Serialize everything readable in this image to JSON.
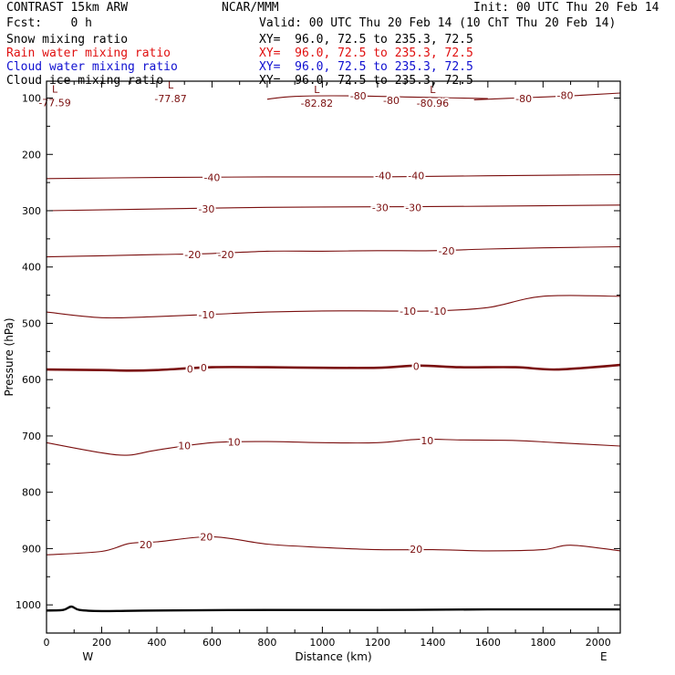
{
  "header": {
    "title": "CONTRAST 15km ARW",
    "center": "NCAR/MMM",
    "init": "Init: 00 UTC Thu 20 Feb 14",
    "fcst": "Fcst:    0 h",
    "valid": "Valid: 00 UTC Thu 20 Feb 14 (10 ChT Thu 20 Feb 14)"
  },
  "legend": [
    {
      "label": "Snow mixing ratio",
      "xy": "XY=  96.0, 72.5 to 235.3, 72.5",
      "color": "#000000"
    },
    {
      "label": "Rain water mixing ratio",
      "xy": "XY=  96.0, 72.5 to 235.3, 72.5",
      "color": "#e01010"
    },
    {
      "label": "Cloud water mixing ratio",
      "xy": "XY=  96.0, 72.5 to 235.3, 72.5",
      "color": "#1010d0"
    },
    {
      "label": "Cloud ice mixing ratio",
      "xy": "XY=  96.0, 72.5 to 235.3, 72.5",
      "color": "#000000"
    }
  ],
  "chart_data": {
    "type": "contour",
    "xlabel": "Distance (km)",
    "ylabel": "Pressure (hPa)",
    "xlim": [
      0,
      2080
    ],
    "ylim": [
      1050,
      70
    ],
    "x_ticks": [
      0,
      200,
      400,
      600,
      800,
      1000,
      1200,
      1400,
      1600,
      1800,
      2000
    ],
    "y_ticks": [
      100,
      200,
      300,
      400,
      500,
      600,
      700,
      800,
      900,
      1000
    ],
    "x_end_labels": {
      "left": "W",
      "right": "E"
    },
    "contour_color": "#7a0e0e",
    "zero_line_color": "#7a0e0e",
    "contours": [
      {
        "level": 20,
        "points": [
          [
            0,
            911
          ],
          [
            200,
            905
          ],
          [
            300,
            891
          ],
          [
            400,
            888
          ],
          [
            600,
            879
          ],
          [
            800,
            892
          ],
          [
            1000,
            898
          ],
          [
            1200,
            902
          ],
          [
            1400,
            902
          ],
          [
            1600,
            904
          ],
          [
            1800,
            902
          ],
          [
            1900,
            894
          ],
          [
            2080,
            904
          ]
        ]
      },
      {
        "level": 10,
        "points": [
          [
            0,
            712
          ],
          [
            200,
            730
          ],
          [
            300,
            734
          ],
          [
            400,
            725
          ],
          [
            600,
            712
          ],
          [
            800,
            710
          ],
          [
            1000,
            712
          ],
          [
            1200,
            712
          ],
          [
            1350,
            706
          ],
          [
            1500,
            707
          ],
          [
            1700,
            708
          ],
          [
            1850,
            712
          ],
          [
            2080,
            718
          ]
        ]
      },
      {
        "level": 0,
        "points": [
          [
            0,
            582
          ],
          [
            200,
            583
          ],
          [
            300,
            584
          ],
          [
            400,
            583
          ],
          [
            600,
            578
          ],
          [
            800,
            578
          ],
          [
            1000,
            579
          ],
          [
            1200,
            579
          ],
          [
            1350,
            575
          ],
          [
            1500,
            578
          ],
          [
            1700,
            578
          ],
          [
            1850,
            582
          ],
          [
            2080,
            574
          ]
        ]
      },
      {
        "level": -10,
        "points": [
          [
            0,
            480
          ],
          [
            200,
            490
          ],
          [
            400,
            488
          ],
          [
            600,
            484
          ],
          [
            800,
            480
          ],
          [
            1000,
            478
          ],
          [
            1200,
            478
          ],
          [
            1400,
            478
          ],
          [
            1600,
            472
          ],
          [
            1800,
            452
          ],
          [
            2080,
            452
          ]
        ]
      },
      {
        "level": -20,
        "points": [
          [
            0,
            382
          ],
          [
            200,
            380
          ],
          [
            400,
            378
          ],
          [
            600,
            376
          ],
          [
            800,
            372
          ],
          [
            1000,
            372
          ],
          [
            1200,
            371
          ],
          [
            1400,
            371
          ],
          [
            1600,
            368
          ],
          [
            1800,
            366
          ],
          [
            2080,
            364
          ]
        ]
      },
      {
        "level": -30,
        "points": [
          [
            0,
            300
          ],
          [
            400,
            297
          ],
          [
            800,
            294
          ],
          [
            1200,
            293
          ],
          [
            1600,
            292
          ],
          [
            2080,
            290
          ]
        ]
      },
      {
        "level": -40,
        "points": [
          [
            0,
            243
          ],
          [
            400,
            241
          ],
          [
            800,
            240
          ],
          [
            1200,
            240
          ],
          [
            1600,
            238
          ],
          [
            2080,
            236
          ]
        ]
      },
      {
        "level": -80,
        "points": [
          [
            800,
            102
          ],
          [
            900,
            97
          ],
          [
            1100,
            96
          ],
          [
            1300,
            98
          ],
          [
            1500,
            100
          ],
          [
            1600,
            101
          ]
        ]
      },
      {
        "level": -80,
        "points": [
          [
            1550,
            103
          ],
          [
            1700,
            100
          ],
          [
            1900,
            96
          ],
          [
            2080,
            91
          ]
        ]
      }
    ],
    "minima": [
      {
        "mark": "L",
        "value": -77.59,
        "x": 30,
        "p": 103
      },
      {
        "mark": "L",
        "value": -77.87,
        "x": 450,
        "p": 96
      },
      {
        "mark": "L",
        "value": -82.82,
        "x": 980,
        "p": 104
      },
      {
        "mark": "L",
        "value": -80.96,
        "x": 1400,
        "p": 104
      }
    ],
    "contour_labels": [
      {
        "text": "-80",
        "x": 1130,
        "p": 96
      },
      {
        "text": "-80",
        "x": 1250,
        "p": 104
      },
      {
        "text": "-80",
        "x": 1730,
        "p": 101
      },
      {
        "text": "-80",
        "x": 1880,
        "p": 95
      },
      {
        "text": "-40",
        "x": 600,
        "p": 241
      },
      {
        "text": "-40",
        "x": 1220,
        "p": 238
      },
      {
        "text": "-40",
        "x": 1340,
        "p": 238
      },
      {
        "text": "-30",
        "x": 580,
        "p": 297
      },
      {
        "text": "-30",
        "x": 1210,
        "p": 294
      },
      {
        "text": "-30",
        "x": 1330,
        "p": 294
      },
      {
        "text": "-20",
        "x": 530,
        "p": 378
      },
      {
        "text": "-20",
        "x": 650,
        "p": 378
      },
      {
        "text": "-20",
        "x": 1450,
        "p": 371
      },
      {
        "text": "-10",
        "x": 580,
        "p": 485
      },
      {
        "text": "-10",
        "x": 1310,
        "p": 478
      },
      {
        "text": "-10",
        "x": 1420,
        "p": 478
      },
      {
        "text": "0",
        "x": 520,
        "p": 581
      },
      {
        "text": "0",
        "x": 570,
        "p": 579
      },
      {
        "text": "0",
        "x": 1340,
        "p": 576
      },
      {
        "text": "10",
        "x": 500,
        "p": 717
      },
      {
        "text": "10",
        "x": 680,
        "p": 711
      },
      {
        "text": "10",
        "x": 1380,
        "p": 708
      },
      {
        "text": "20",
        "x": 360,
        "p": 893
      },
      {
        "text": "20",
        "x": 580,
        "p": 879
      },
      {
        "text": "20",
        "x": 1340,
        "p": 901
      }
    ],
    "terrain": [
      [
        0,
        1010
      ],
      [
        60,
        1009
      ],
      [
        90,
        1003
      ],
      [
        120,
        1009
      ],
      [
        200,
        1011
      ],
      [
        400,
        1010
      ],
      [
        800,
        1009
      ],
      [
        1200,
        1009
      ],
      [
        1600,
        1008
      ],
      [
        2080,
        1008
      ]
    ]
  }
}
